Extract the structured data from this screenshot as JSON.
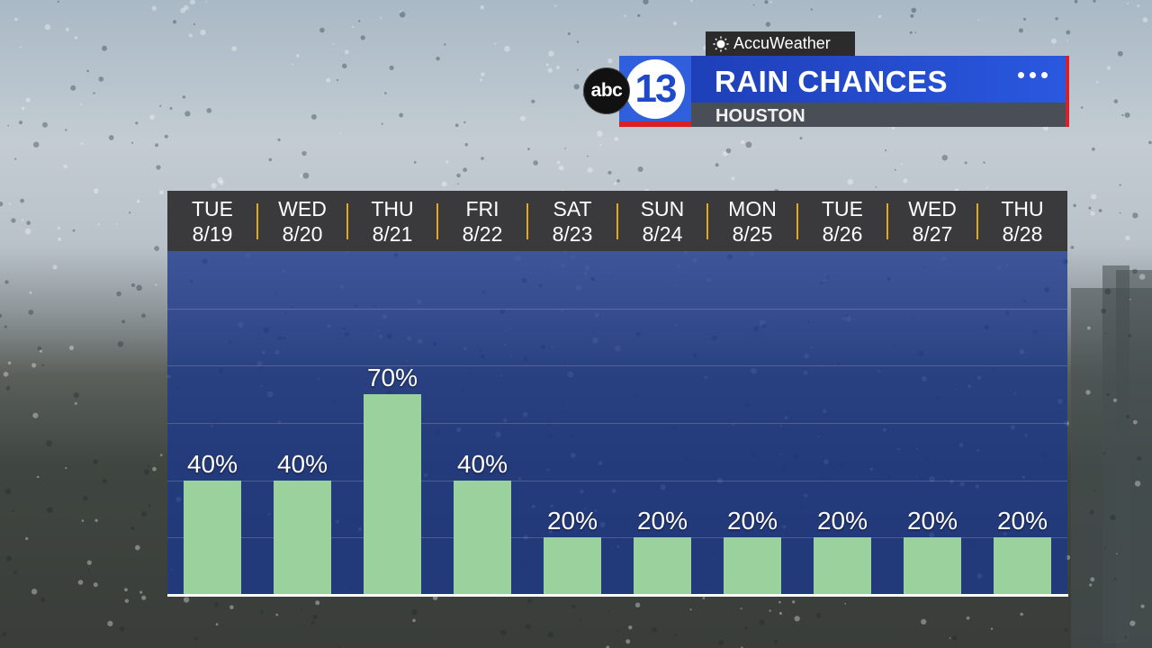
{
  "header": {
    "brand": "AccuWeather",
    "station_logo_abc": "abc",
    "station_logo_number": "13",
    "title": "RAIN CHANCES",
    "location": "HOUSTON",
    "menu_icon": "ellipsis-icon",
    "colors": {
      "banner_blue": "#2a58e0",
      "accent_red": "#d6212a",
      "separator_gold": "#e3a91f"
    }
  },
  "chart_data": {
    "type": "bar",
    "categories": [
      {
        "day": "TUE",
        "date": "8/19"
      },
      {
        "day": "WED",
        "date": "8/20"
      },
      {
        "day": "THU",
        "date": "8/21"
      },
      {
        "day": "FRI",
        "date": "8/22"
      },
      {
        "day": "SAT",
        "date": "8/23"
      },
      {
        "day": "SUN",
        "date": "8/24"
      },
      {
        "day": "MON",
        "date": "8/25"
      },
      {
        "day": "TUE",
        "date": "8/26"
      },
      {
        "day": "WED",
        "date": "8/27"
      },
      {
        "day": "THU",
        "date": "8/28"
      }
    ],
    "values": [
      40,
      40,
      70,
      40,
      20,
      20,
      20,
      20,
      20,
      20
    ],
    "value_labels": [
      "40%",
      "40%",
      "70%",
      "40%",
      "20%",
      "20%",
      "20%",
      "20%",
      "20%",
      "20%"
    ],
    "ylim": [
      0,
      120
    ],
    "gridlines": [
      20,
      40,
      60,
      80,
      100
    ],
    "bar_color": "#9bd19c"
  }
}
